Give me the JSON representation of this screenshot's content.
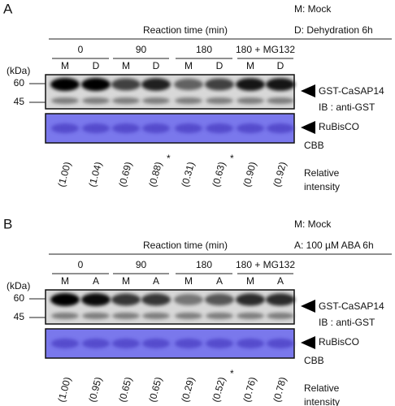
{
  "panels": [
    {
      "label": "A",
      "legend": [
        "M: Mock",
        "D: Dehydration 6h"
      ],
      "axis_title": "Reaction time (min)",
      "groups": [
        "0",
        "90",
        "180",
        "180 + MG132"
      ],
      "lanes": [
        "M",
        "D",
        "M",
        "D",
        "M",
        "D",
        "M",
        "D"
      ],
      "kda_label": "(kDa)",
      "markers": [
        "60",
        "45"
      ],
      "blot_label": "GST-CaSAP14",
      "blot_method": "IB : anti-GST",
      "loading_label": "RuBisCO",
      "loading_method": "CBB",
      "intensity_label": [
        "Relative",
        "intensity"
      ],
      "intensities": [
        {
          "text": "(1.00)"
        },
        {
          "text": "(1.04)"
        },
        {
          "text": "(0.69)"
        },
        {
          "text": "(0.88)",
          "mark": "*"
        },
        {
          "text": "(0.31)"
        },
        {
          "text": "(0.63)",
          "mark": "*"
        },
        {
          "text": "(0.90)"
        },
        {
          "text": "(0.92)"
        }
      ]
    },
    {
      "label": "B",
      "legend": [
        "M: Mock",
        "A: 100 µM ABA 6h"
      ],
      "axis_title": "Reaction time (min)",
      "groups": [
        "0",
        "90",
        "180",
        "180 + MG132"
      ],
      "lanes": [
        "M",
        "A",
        "M",
        "A",
        "M",
        "A",
        "M",
        "A"
      ],
      "kda_label": "(kDa)",
      "markers": [
        "60",
        "45"
      ],
      "blot_label": "GST-CaSAP14",
      "blot_method": "IB : anti-GST",
      "loading_label": "RuBisCO",
      "loading_method": "CBB",
      "intensity_label": [
        "Relative",
        "intensity"
      ],
      "intensities": [
        {
          "text": "(1.00)"
        },
        {
          "text": "(0.95)"
        },
        {
          "text": "(0.65)"
        },
        {
          "text": "(0.65)"
        },
        {
          "text": "(0.29)"
        },
        {
          "text": "(0.52)",
          "mark": "*"
        },
        {
          "text": "(0.76)"
        },
        {
          "text": "(0.78)"
        }
      ]
    }
  ]
}
